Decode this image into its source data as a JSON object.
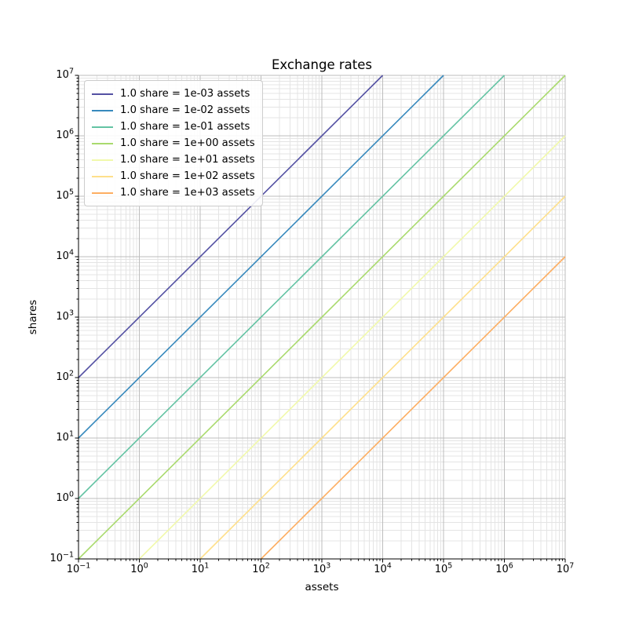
{
  "figure": {
    "background": "#ffffff"
  },
  "chart_data": {
    "type": "line",
    "title": "Exchange rates",
    "xlabel": "assets",
    "ylabel": "shares",
    "xscale": "log",
    "yscale": "log",
    "xlim": [
      0.1,
      10000000
    ],
    "ylim": [
      0.1,
      10000000
    ],
    "major_tick_exponents": [
      -1,
      0,
      1,
      2,
      3,
      4,
      5,
      6,
      7
    ],
    "minor_tick_mantissas": [
      2,
      3,
      4,
      5,
      6,
      7,
      8,
      9
    ],
    "grid": {
      "enabled": true,
      "major_color": "#bdbdbd",
      "minor_color": "#e4e4e4"
    },
    "axis": {
      "spine_color": "#000000",
      "tick_color": "#000000",
      "shown_spines": [
        "left",
        "bottom"
      ]
    },
    "legend": {
      "position": "upper left",
      "background": "#ffffff",
      "border_color": "#cccccc"
    },
    "series": [
      {
        "label": "1.0 share = 1e-03 assets",
        "assets_per_share": 0.001,
        "color": "#5451a3",
        "points": [
          [
            0.1,
            100
          ],
          [
            10000,
            10000000
          ]
        ]
      },
      {
        "label": "1.0 share = 1e-02 assets",
        "assets_per_share": 0.01,
        "color": "#3789bd",
        "points": [
          [
            0.1,
            10
          ],
          [
            100000,
            10000000
          ]
        ]
      },
      {
        "label": "1.0 share = 1e-01 assets",
        "assets_per_share": 0.1,
        "color": "#63c3a3",
        "points": [
          [
            0.1,
            1
          ],
          [
            1000000,
            10000000
          ]
        ]
      },
      {
        "label": "1.0 share = 1e+00 assets",
        "assets_per_share": 1,
        "color": "#a9da6d",
        "points": [
          [
            0.1,
            0.1
          ],
          [
            10000000,
            10000000
          ]
        ]
      },
      {
        "label": "1.0 share = 1e+01 assets",
        "assets_per_share": 10,
        "color": "#f1f9ab",
        "points": [
          [
            1,
            0.1
          ],
          [
            10000000,
            1000000
          ]
        ]
      },
      {
        "label": "1.0 share = 1e+02 assets",
        "assets_per_share": 100,
        "color": "#fee08b",
        "points": [
          [
            10,
            0.1
          ],
          [
            10000000,
            100000
          ]
        ]
      },
      {
        "label": "1.0 share = 1e+03 assets",
        "assets_per_share": 1000,
        "color": "#fdae61",
        "points": [
          [
            100,
            0.1
          ],
          [
            10000000,
            10000
          ]
        ]
      }
    ]
  }
}
